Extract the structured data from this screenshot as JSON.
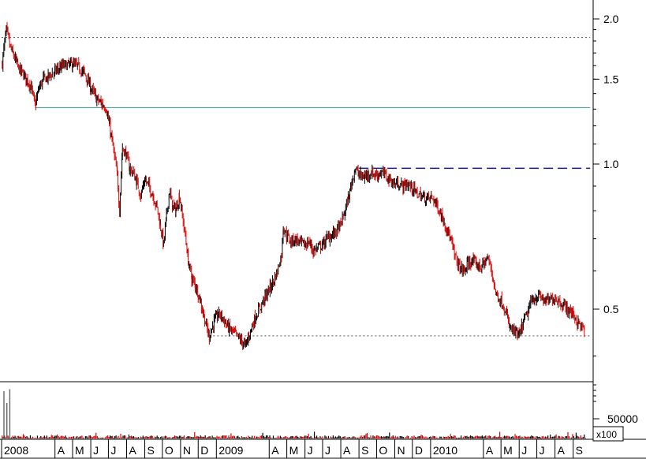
{
  "chart_data": [
    {
      "type": "candlestick",
      "scale": "log",
      "ylim": [
        0.39,
        2.2
      ],
      "y_ticks": [
        {
          "value": 2.0,
          "label": "2.0"
        },
        {
          "value": 1.5,
          "label": "1.5"
        },
        {
          "value": 1.0,
          "label": "1.0"
        },
        {
          "value": 0.5,
          "label": "0.5"
        }
      ],
      "x_period": [
        "2008-01",
        "2010-09"
      ],
      "x_ticks": [
        {
          "date": "2008-01",
          "label": "2008"
        },
        {
          "date": "2008-04",
          "label": "A"
        },
        {
          "date": "2008-05",
          "label": "M"
        },
        {
          "date": "2008-06",
          "label": "J"
        },
        {
          "date": "2008-07",
          "label": "J"
        },
        {
          "date": "2008-08",
          "label": "A"
        },
        {
          "date": "2008-09",
          "label": "S"
        },
        {
          "date": "2008-10",
          "label": "O"
        },
        {
          "date": "2008-11",
          "label": "N"
        },
        {
          "date": "2008-12",
          "label": "D"
        },
        {
          "date": "2009-01",
          "label": "2009"
        },
        {
          "date": "2009-04",
          "label": "A"
        },
        {
          "date": "2009-05",
          "label": "M"
        },
        {
          "date": "2009-06",
          "label": "J"
        },
        {
          "date": "2009-07",
          "label": "J"
        },
        {
          "date": "2009-08",
          "label": "A"
        },
        {
          "date": "2009-09",
          "label": "S"
        },
        {
          "date": "2009-10",
          "label": "O"
        },
        {
          "date": "2009-11",
          "label": "N"
        },
        {
          "date": "2009-12",
          "label": "D"
        },
        {
          "date": "2010-01",
          "label": "2010"
        },
        {
          "date": "2010-04",
          "label": "A"
        },
        {
          "date": "2010-05",
          "label": "M"
        },
        {
          "date": "2010-06",
          "label": "J"
        },
        {
          "date": "2010-07",
          "label": "J"
        },
        {
          "date": "2010-08",
          "label": "A"
        },
        {
          "date": "2010-09",
          "label": "S"
        }
      ],
      "series": [
        {
          "price_path": [
            [
              "2008-01-02",
              1.62
            ],
            [
              "2008-01-09",
              1.9
            ],
            [
              "2008-01-16",
              1.74
            ],
            [
              "2008-01-23",
              1.66
            ],
            [
              "2008-01-30",
              1.58
            ],
            [
              "2008-02-06",
              1.54
            ],
            [
              "2008-02-13",
              1.5
            ],
            [
              "2008-02-20",
              1.45
            ],
            [
              "2008-02-27",
              1.32
            ],
            [
              "2008-03-05",
              1.44
            ],
            [
              "2008-03-12",
              1.5
            ],
            [
              "2008-03-19",
              1.51
            ],
            [
              "2008-04-01",
              1.56
            ],
            [
              "2008-04-15",
              1.6
            ],
            [
              "2008-05-01",
              1.61
            ],
            [
              "2008-05-10",
              1.59
            ],
            [
              "2008-05-20",
              1.55
            ],
            [
              "2008-06-01",
              1.44
            ],
            [
              "2008-06-10",
              1.37
            ],
            [
              "2008-06-20",
              1.33
            ],
            [
              "2008-06-27",
              1.31
            ],
            [
              "2008-07-03",
              1.2
            ],
            [
              "2008-07-10",
              1.06
            ],
            [
              "2008-07-16",
              0.95
            ],
            [
              "2008-07-20",
              0.8
            ],
            [
              "2008-07-25",
              1.08
            ],
            [
              "2008-07-31",
              1.05
            ],
            [
              "2008-08-06",
              0.98
            ],
            [
              "2008-08-12",
              0.96
            ],
            [
              "2008-08-18",
              0.92
            ],
            [
              "2008-08-25",
              0.86
            ],
            [
              "2008-09-01",
              0.93
            ],
            [
              "2008-09-08",
              0.9
            ],
            [
              "2008-09-15",
              0.86
            ],
            [
              "2008-09-22",
              0.81
            ],
            [
              "2008-09-28",
              0.74
            ],
            [
              "2008-10-03",
              0.68
            ],
            [
              "2008-10-08",
              0.78
            ],
            [
              "2008-10-13",
              0.88
            ],
            [
              "2008-10-18",
              0.82
            ],
            [
              "2008-10-24",
              0.8
            ],
            [
              "2008-10-30",
              0.86
            ],
            [
              "2008-11-04",
              0.78
            ],
            [
              "2008-11-09",
              0.71
            ],
            [
              "2008-11-14",
              0.63
            ],
            [
              "2008-11-20",
              0.58
            ],
            [
              "2008-11-26",
              0.56
            ],
            [
              "2008-12-01",
              0.54
            ],
            [
              "2008-12-08",
              0.5
            ],
            [
              "2008-12-15",
              0.46
            ],
            [
              "2008-12-20",
              0.44
            ],
            [
              "2008-12-28",
              0.47
            ],
            [
              "2009-01-05",
              0.49
            ],
            [
              "2009-01-12",
              0.48
            ],
            [
              "2009-01-20",
              0.46
            ],
            [
              "2009-01-28",
              0.45
            ],
            [
              "2009-02-05",
              0.44
            ],
            [
              "2009-02-12",
              0.43
            ],
            [
              "2009-02-20",
              0.42
            ],
            [
              "2009-02-28",
              0.45
            ],
            [
              "2009-03-08",
              0.48
            ],
            [
              "2009-03-15",
              0.5
            ],
            [
              "2009-03-25",
              0.53
            ],
            [
              "2009-04-01",
              0.55
            ],
            [
              "2009-04-08",
              0.57
            ],
            [
              "2009-04-15",
              0.6
            ],
            [
              "2009-04-22",
              0.65
            ],
            [
              "2009-04-25",
              0.74
            ],
            [
              "2009-05-01",
              0.71
            ],
            [
              "2009-05-08",
              0.69
            ],
            [
              "2009-05-15",
              0.7
            ],
            [
              "2009-05-22",
              0.69
            ],
            [
              "2009-06-01",
              0.68
            ],
            [
              "2009-06-08",
              0.69
            ],
            [
              "2009-06-15",
              0.66
            ],
            [
              "2009-06-22",
              0.67
            ],
            [
              "2009-07-01",
              0.68
            ],
            [
              "2009-07-08",
              0.7
            ],
            [
              "2009-07-15",
              0.71
            ],
            [
              "2009-07-22",
              0.72
            ],
            [
              "2009-08-01",
              0.75
            ],
            [
              "2009-08-08",
              0.8
            ],
            [
              "2009-08-15",
              0.86
            ],
            [
              "2009-08-20",
              0.92
            ],
            [
              "2009-08-25",
              0.98
            ],
            [
              "2009-09-01",
              0.95
            ],
            [
              "2009-09-08",
              0.94
            ],
            [
              "2009-09-15",
              0.95
            ],
            [
              "2009-09-22",
              0.96
            ],
            [
              "2009-10-01",
              0.95
            ],
            [
              "2009-10-08",
              0.96
            ],
            [
              "2009-10-15",
              0.95
            ],
            [
              "2009-10-22",
              0.93
            ],
            [
              "2009-11-01",
              0.91
            ],
            [
              "2009-11-08",
              0.91
            ],
            [
              "2009-11-15",
              0.9
            ],
            [
              "2009-11-22",
              0.91
            ],
            [
              "2009-12-01",
              0.89
            ],
            [
              "2009-12-08",
              0.87
            ],
            [
              "2009-12-15",
              0.86
            ],
            [
              "2009-12-22",
              0.85
            ],
            [
              "2010-01-05",
              0.85
            ],
            [
              "2010-01-12",
              0.82
            ],
            [
              "2010-01-20",
              0.78
            ],
            [
              "2010-01-28",
              0.74
            ],
            [
              "2010-02-05",
              0.69
            ],
            [
              "2010-02-12",
              0.64
            ],
            [
              "2010-02-20",
              0.61
            ],
            [
              "2010-02-28",
              0.6
            ],
            [
              "2010-03-05",
              0.62
            ],
            [
              "2010-03-12",
              0.63
            ],
            [
              "2010-03-20",
              0.62
            ],
            [
              "2010-03-28",
              0.61
            ],
            [
              "2010-04-01",
              0.62
            ],
            [
              "2010-04-08",
              0.64
            ],
            [
              "2010-04-15",
              0.6
            ],
            [
              "2010-04-22",
              0.54
            ],
            [
              "2010-05-01",
              0.52
            ],
            [
              "2010-05-08",
              0.5
            ],
            [
              "2010-05-15",
              0.46
            ],
            [
              "2010-05-22",
              0.45
            ],
            [
              "2010-06-01",
              0.44
            ],
            [
              "2010-06-08",
              0.47
            ],
            [
              "2010-06-15",
              0.49
            ],
            [
              "2010-06-22",
              0.52
            ],
            [
              "2010-07-01",
              0.53
            ],
            [
              "2010-07-08",
              0.53
            ],
            [
              "2010-07-15",
              0.52
            ],
            [
              "2010-07-22",
              0.52
            ],
            [
              "2010-08-01",
              0.53
            ],
            [
              "2010-08-08",
              0.52
            ],
            [
              "2010-08-15",
              0.51
            ],
            [
              "2010-08-22",
              0.5
            ],
            [
              "2010-09-01",
              0.49
            ],
            [
              "2010-09-08",
              0.47
            ],
            [
              "2010-09-15",
              0.46
            ],
            [
              "2010-09-20",
              0.45
            ]
          ],
          "colors": {
            "up": "#000000",
            "down": "#dd0000"
          }
        }
      ],
      "reference_lines": [
        {
          "style": "dotted",
          "color": "#555555",
          "y": 1.83,
          "from": "2008-01-01",
          "to": "2010-09-30"
        },
        {
          "style": "solid",
          "color": "#3a9a96",
          "y": 1.31,
          "from": "2008-02-27",
          "to": "2010-09-30"
        },
        {
          "style": "dashed",
          "color": "#1a1a80",
          "y": 0.98,
          "from": "2009-09-01",
          "to": "2010-09-30"
        },
        {
          "style": "dotted",
          "color": "#555555",
          "y": 0.44,
          "from": "2008-12-20",
          "to": "2010-09-30"
        }
      ]
    },
    {
      "type": "bar",
      "name": "volume",
      "unit_label": "x100",
      "y_ticks": [
        {
          "value": 50000,
          "label": "50000"
        }
      ],
      "ylim": [
        0,
        140000
      ],
      "peaks": [
        {
          "date": "2008-01-05",
          "value": 120000
        },
        {
          "date": "2008-01-10",
          "value": 90000
        },
        {
          "date": "2008-01-15",
          "value": 125000
        }
      ],
      "typical_range": [
        1000,
        8000
      ],
      "colors": {
        "up": "#000000",
        "down": "#dd0000"
      }
    }
  ]
}
